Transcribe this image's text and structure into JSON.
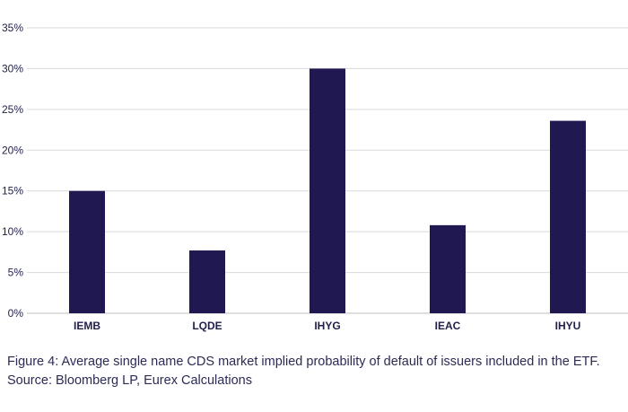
{
  "chart_data": {
    "type": "bar",
    "categories": [
      "IEMB",
      "LQDE",
      "IHYG",
      "IEAC",
      "IHYU"
    ],
    "series": [
      {
        "values": [
          15.0,
          7.7,
          30.0,
          10.8,
          23.6
        ]
      }
    ],
    "ylim": [
      0,
      35
    ],
    "yticks": [
      "0%",
      "5%",
      "10%",
      "15%",
      "20%",
      "25%",
      "30%",
      "35%"
    ],
    "y_unit": "%",
    "grid": true,
    "bar_color": "#201850",
    "grid_color": "#d9d9d9"
  },
  "caption": {
    "line1": "Figure 4: Average single name CDS market implied probability of default of issuers included in the ETF.",
    "line2": "Source: Bloomberg LP, Eurex Calculations"
  }
}
